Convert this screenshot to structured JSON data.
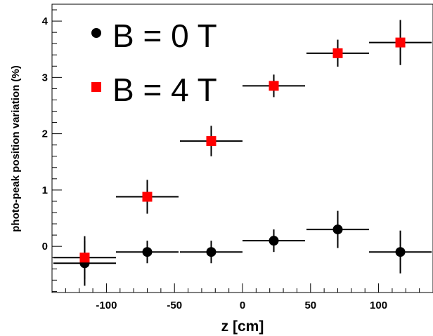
{
  "chart_data": {
    "type": "scatter",
    "title": "",
    "xlabel": "z [cm]",
    "ylabel": "photo-peak position variation (%)",
    "xlim": [
      -140,
      140
    ],
    "ylim": [
      -0.82,
      4.3
    ],
    "x_ticks": [
      -100,
      -50,
      0,
      50,
      100
    ],
    "y_ticks": [
      0,
      1,
      2,
      3,
      4
    ],
    "grid": false,
    "legend_position": "top-left",
    "series": [
      {
        "name": "B = 0 T",
        "marker": "circle",
        "color": "#000000",
        "points": [
          {
            "x": -116,
            "y": -0.3,
            "xerr": 23,
            "yerr": 0.4
          },
          {
            "x": -70,
            "y": -0.1,
            "xerr": 23,
            "yerr": 0.2
          },
          {
            "x": -23,
            "y": -0.1,
            "xerr": 23,
            "yerr": 0.2
          },
          {
            "x": 23,
            "y": 0.1,
            "xerr": 23,
            "yerr": 0.2
          },
          {
            "x": 70,
            "y": 0.3,
            "xerr": 23,
            "yerr": 0.33
          },
          {
            "x": 116,
            "y": -0.1,
            "xerr": 23,
            "yerr": 0.38
          }
        ]
      },
      {
        "name": "B = 4 T",
        "marker": "square",
        "color": "#ff0000",
        "points": [
          {
            "x": -116,
            "y": -0.2,
            "xerr": 23,
            "yerr": 0.38
          },
          {
            "x": -70,
            "y": 0.88,
            "xerr": 23,
            "yerr": 0.3
          },
          {
            "x": -23,
            "y": 1.87,
            "xerr": 23,
            "yerr": 0.27
          },
          {
            "x": 23,
            "y": 2.85,
            "xerr": 23,
            "yerr": 0.2
          },
          {
            "x": 70,
            "y": 3.43,
            "xerr": 23,
            "yerr": 0.24
          },
          {
            "x": 116,
            "y": 3.62,
            "xerr": 23,
            "yerr": 0.4
          }
        ]
      }
    ]
  }
}
